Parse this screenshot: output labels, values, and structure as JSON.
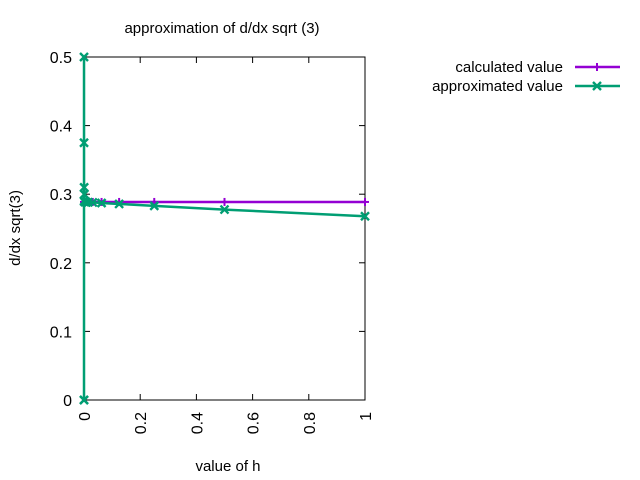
{
  "chart_data": {
    "type": "line",
    "title": "approximation of d/dx sqrt (3)",
    "xlabel": "value of h",
    "ylabel": "d/dx sqrt(3)",
    "xlim": [
      0,
      1
    ],
    "ylim": [
      0,
      0.5
    ],
    "x_ticks": [
      "0",
      "0.2",
      "0.4",
      "0.6",
      "0.8",
      "1"
    ],
    "y_ticks": [
      "0",
      "0.1",
      "0.2",
      "0.3",
      "0.4",
      "0.5"
    ],
    "grid": false,
    "legend_position": "top-right, outside plot",
    "series": [
      {
        "name": "calculated value",
        "color": "#9400d3",
        "marker": "plus",
        "x": [
          1,
          0.5,
          0.25,
          0.125,
          0.0625,
          0.03125,
          0.015625,
          0.0078125,
          0.00390625,
          0.001953125,
          0.0009765625,
          0.00048828125,
          0.000244140625
        ],
        "y": [
          0.2887,
          0.2887,
          0.2887,
          0.2887,
          0.2887,
          0.2887,
          0.2887,
          0.2887,
          0.2887,
          0.2887,
          0.2887,
          0.2887,
          0.2887
        ]
      },
      {
        "name": "approximated value",
        "color": "#009e73",
        "marker": "x",
        "x": [
          1,
          0.5,
          0.25,
          0.125,
          0.0625,
          0.03125,
          0.015625,
          0.0078125,
          0.00390625,
          0.001953125,
          0.0009765625,
          0.00048828125,
          0.000244140625,
          0.0001220703125,
          6.103515625e-05,
          3.0517578125e-05,
          1.52587890625e-05
        ],
        "y": [
          0.2679,
          0.2776,
          0.283,
          0.2858,
          0.2872,
          0.288,
          0.2883,
          0.2885,
          0.2886,
          0.2887,
          0.3,
          0.31,
          0.29,
          0.375,
          0.5,
          0,
          0
        ]
      }
    ]
  }
}
